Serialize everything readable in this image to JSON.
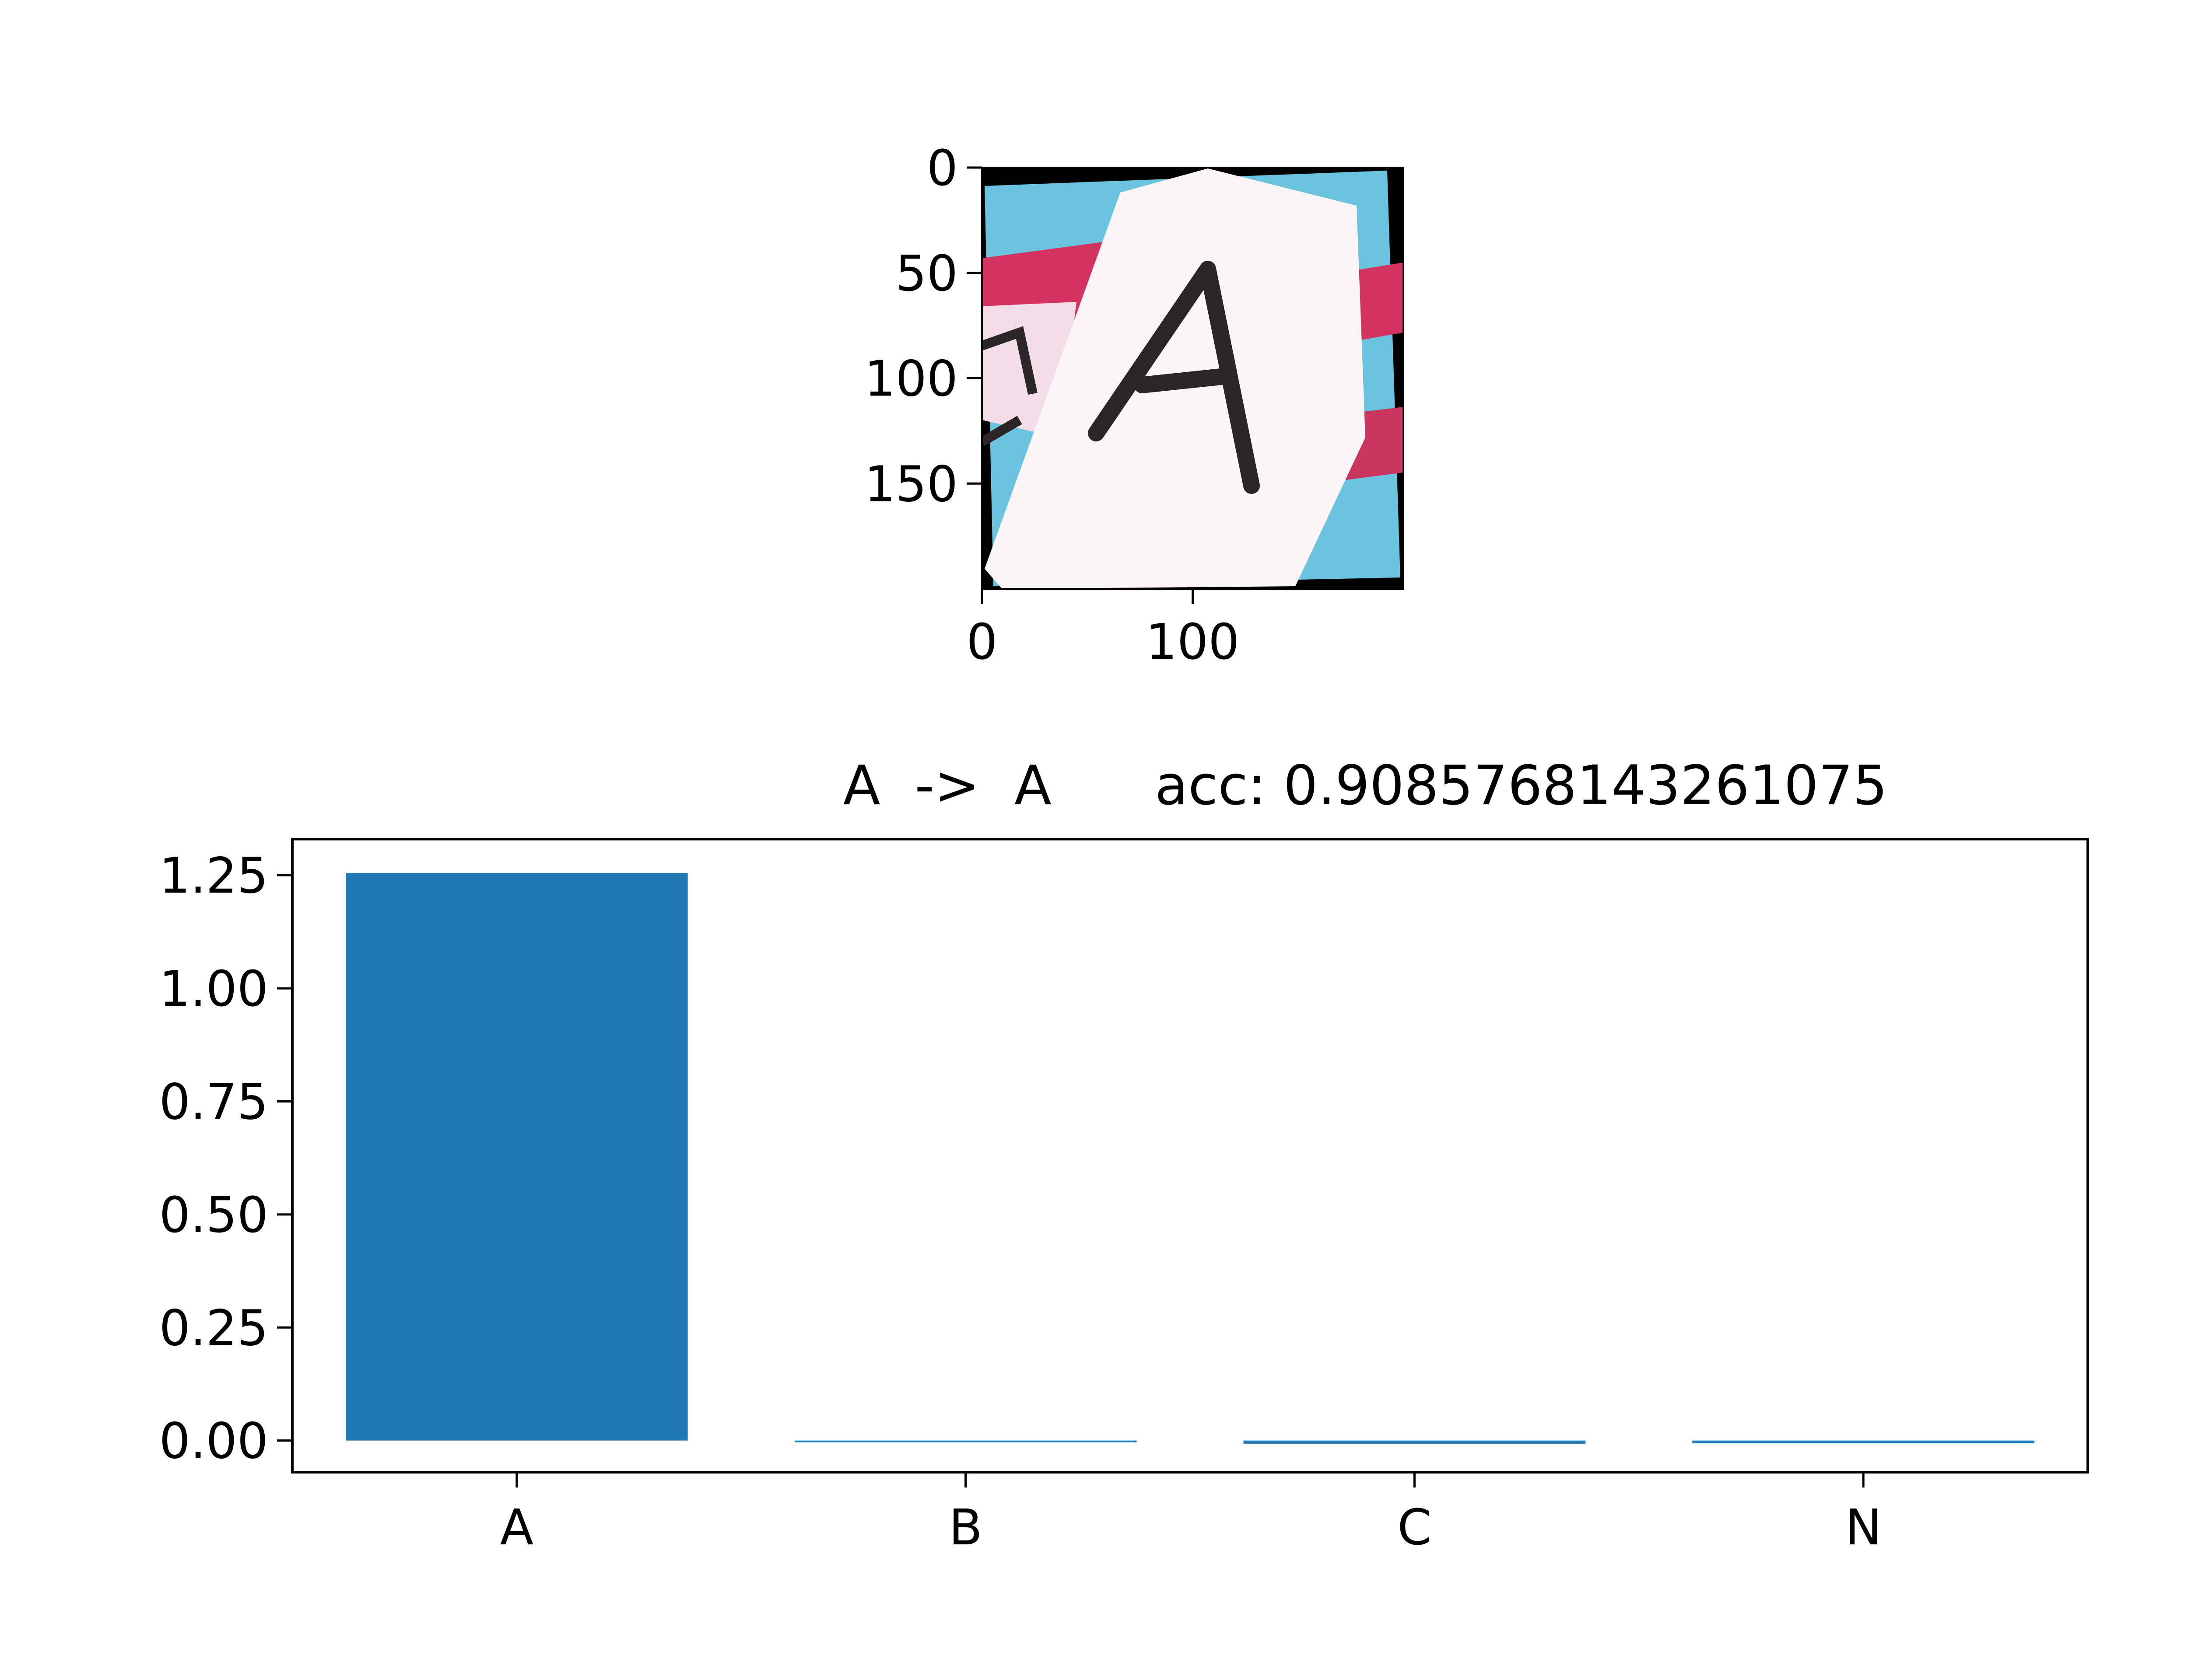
{
  "chart_data": [
    {
      "type": "image",
      "description_tag": "thumbnail",
      "x_ticks": [
        0,
        100
      ],
      "y_ticks": [
        0,
        50,
        100,
        150
      ],
      "x_range": [
        0,
        200
      ],
      "y_range": [
        0,
        200
      ],
      "glyph": "A",
      "colors": {
        "sky": "#6cc3df",
        "card": "#fbf5f8",
        "stripe": "#d4325f",
        "ink": "#2b2528",
        "border": "#000000"
      }
    },
    {
      "type": "bar",
      "title": "A  ->  A      acc: 0.9085768143261075",
      "categories": [
        "A",
        "B",
        "C",
        "N"
      ],
      "values": [
        1.255,
        -0.003,
        -0.007,
        -0.006
      ],
      "ylim": [
        -0.07,
        1.33
      ],
      "yticks": [
        0.0,
        0.25,
        0.5,
        0.75,
        1.0,
        1.25
      ],
      "ytick_labels": [
        "0.00",
        "0.25",
        "0.50",
        "0.75",
        "1.00",
        "1.25"
      ],
      "bar_color": "#1f77b4",
      "grid": false,
      "xlabel": "",
      "ylabel": ""
    }
  ]
}
